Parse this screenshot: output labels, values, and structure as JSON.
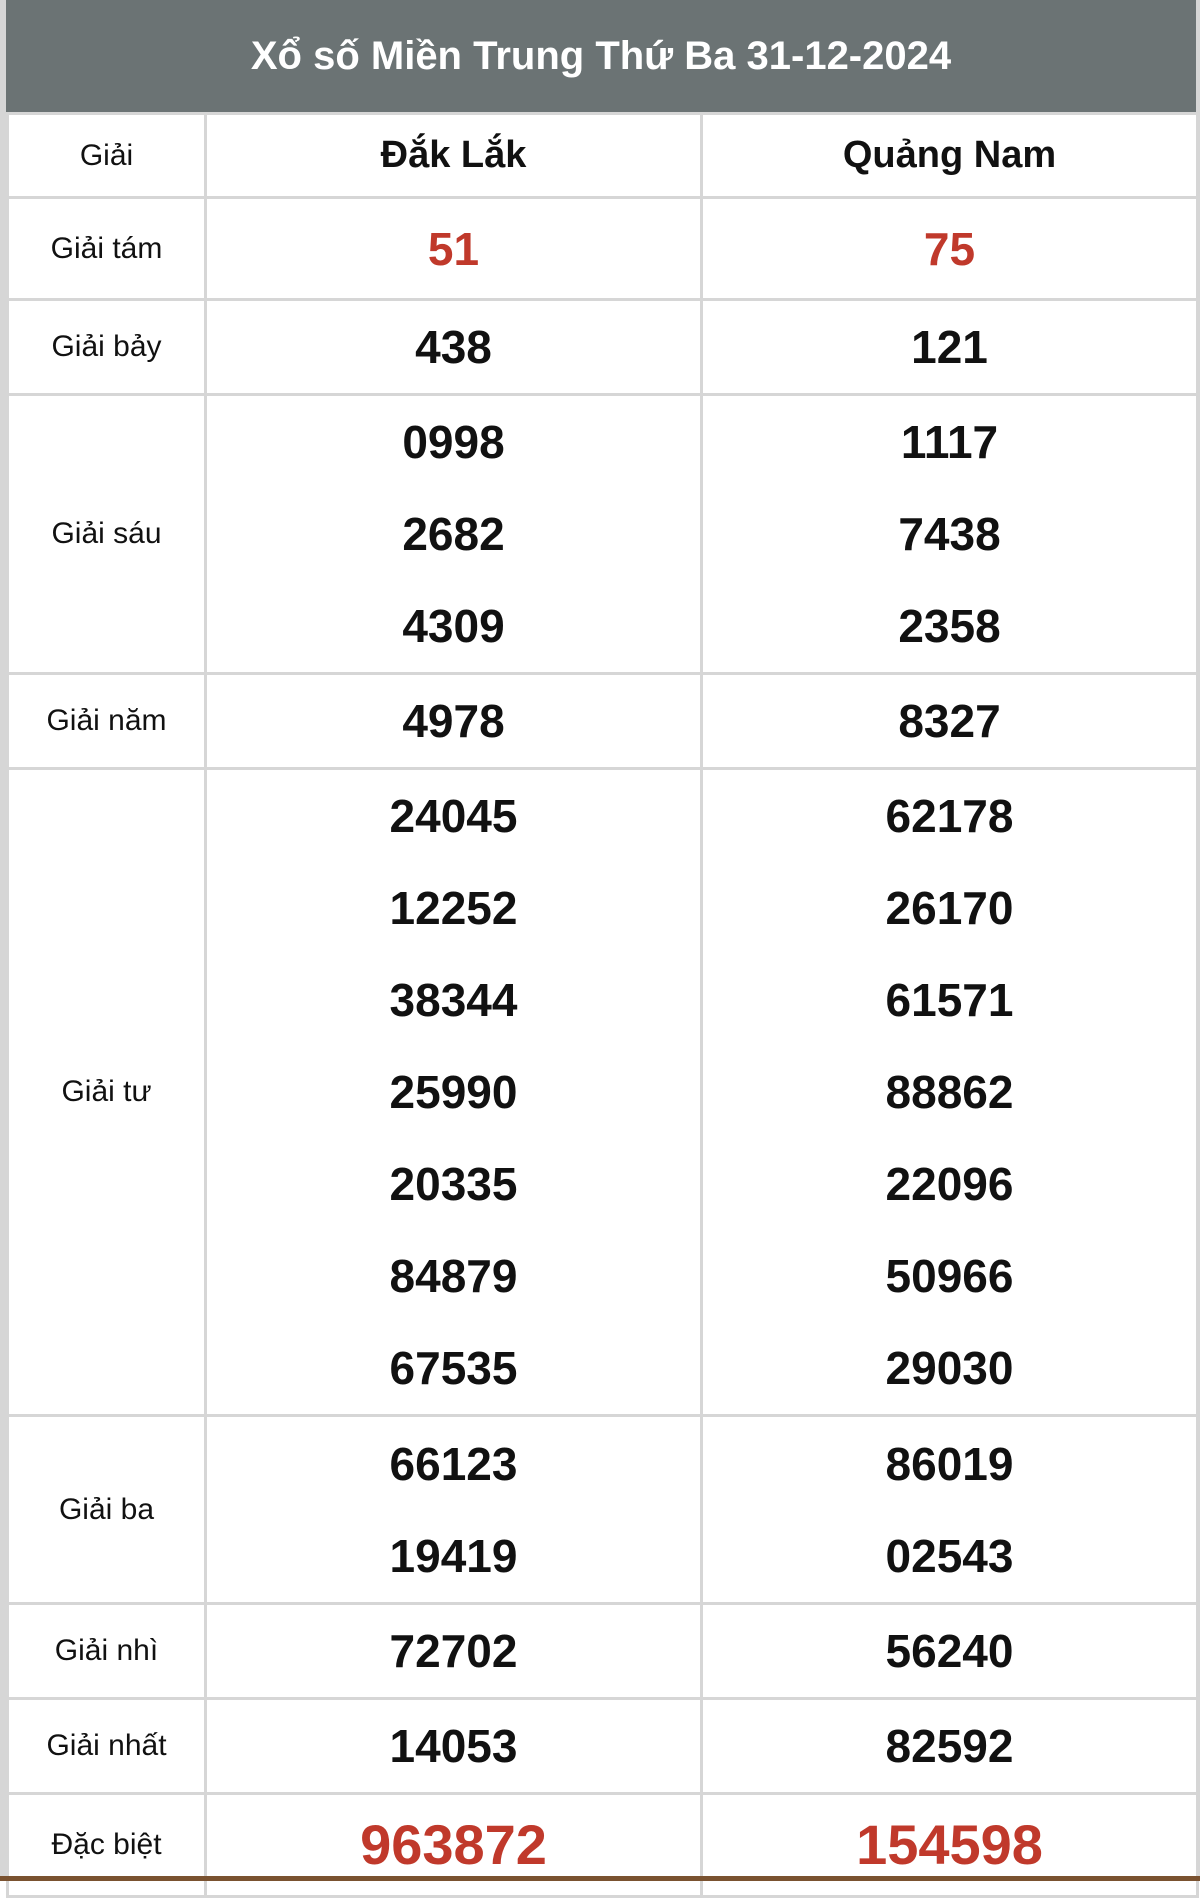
{
  "title": "Xổ số Miền Trung Thứ Ba 31-12-2024",
  "header": {
    "prize_label": "Giải",
    "provinces": [
      "Đắk Lắk",
      "Quảng Nam"
    ]
  },
  "colors": {
    "header_bg": "#6b7374",
    "highlight": "#c0392b",
    "border": "#d6d6d6",
    "bottom_bar": "#7a5230"
  },
  "rows": [
    {
      "label": "Giải tám",
      "highlight": true,
      "values": [
        [
          "51"
        ],
        [
          "75"
        ]
      ]
    },
    {
      "label": "Giải bảy",
      "values": [
        [
          "438"
        ],
        [
          "121"
        ]
      ]
    },
    {
      "label": "Giải sáu",
      "values": [
        [
          "0998",
          "2682",
          "4309"
        ],
        [
          "1117",
          "7438",
          "2358"
        ]
      ]
    },
    {
      "label": "Giải năm",
      "values": [
        [
          "4978"
        ],
        [
          "8327"
        ]
      ]
    },
    {
      "label": "Giải tư",
      "values": [
        [
          "24045",
          "12252",
          "38344",
          "25990",
          "20335",
          "84879",
          "67535"
        ],
        [
          "62178",
          "26170",
          "61571",
          "88862",
          "22096",
          "50966",
          "29030"
        ]
      ]
    },
    {
      "label": "Giải ba",
      "values": [
        [
          "66123",
          "19419"
        ],
        [
          "86019",
          "02543"
        ]
      ]
    },
    {
      "label": "Giải nhì",
      "values": [
        [
          "72702"
        ],
        [
          "56240"
        ]
      ]
    },
    {
      "label": "Giải nhất",
      "values": [
        [
          "14053"
        ],
        [
          "82592"
        ]
      ]
    },
    {
      "label": "Đặc biệt",
      "highlight": true,
      "big": true,
      "values": [
        [
          "963872"
        ],
        [
          "154598"
        ]
      ]
    }
  ]
}
